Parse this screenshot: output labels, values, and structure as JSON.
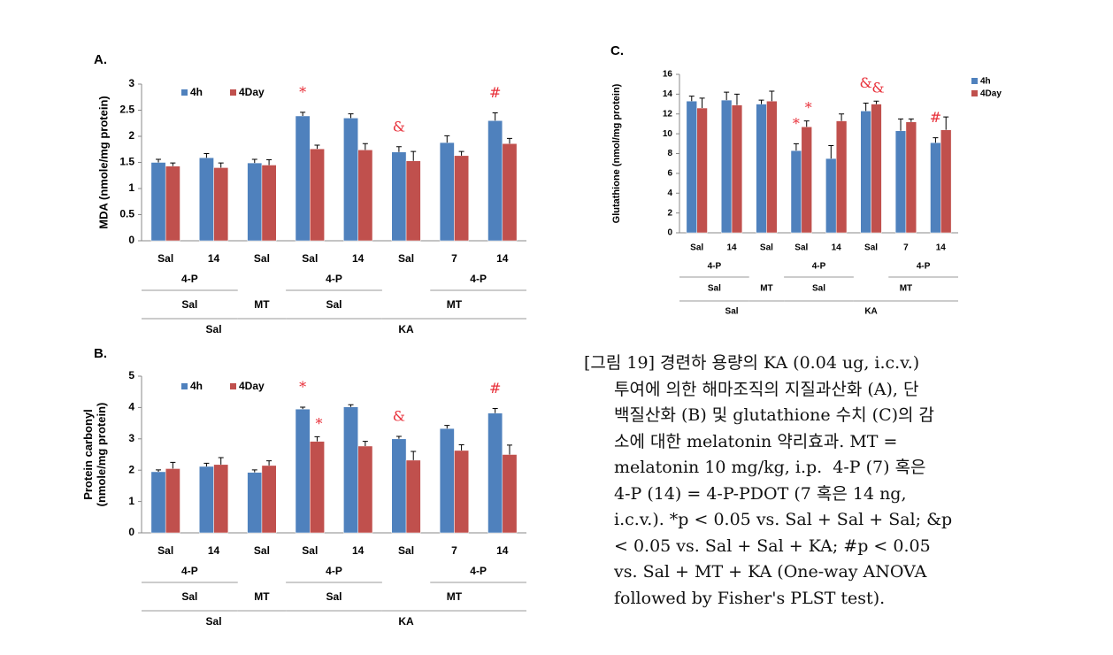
{
  "chart_data": [
    {
      "type": "bar",
      "panel": "A.",
      "ylabel": "MDA (nmole/mg protein)",
      "categories": [
        "Sal",
        "14",
        "Sal",
        "Sal",
        "14",
        "Sal",
        "7",
        "14"
      ],
      "group_labels": [
        [
          "4-P",
          "4-P",
          "4-P"
        ],
        [
          "Sal",
          "MT",
          "Sal",
          "MT"
        ],
        [
          "Sal",
          "KA"
        ]
      ],
      "series": [
        {
          "name": "4h",
          "color": "#4f81bd",
          "values": [
            1.5,
            1.59,
            1.49,
            2.39,
            2.35,
            1.7,
            1.88,
            2.3
          ],
          "errors": [
            0.06,
            0.08,
            0.07,
            0.07,
            0.08,
            0.1,
            0.13,
            0.15
          ],
          "annotations": [
            null,
            null,
            null,
            "*",
            null,
            "&",
            null,
            "#"
          ]
        },
        {
          "name": "4Day",
          "color": "#c0504d",
          "values": [
            1.43,
            1.4,
            1.45,
            1.76,
            1.74,
            1.53,
            1.63,
            1.86
          ],
          "errors": [
            0.06,
            0.09,
            0.1,
            0.07,
            0.12,
            0.18,
            0.08,
            0.1
          ]
        }
      ],
      "ylim": [
        0,
        3
      ],
      "yticks": [
        0,
        0.5,
        1,
        1.5,
        2,
        2.5,
        3
      ],
      "legend": "top-left-inside",
      "annotation_color": "#e8303a"
    },
    {
      "type": "bar",
      "panel": "B.",
      "ylabel": [
        "Protein carbonyl",
        "(nmole/mg protein)"
      ],
      "categories": [
        "Sal",
        "14",
        "Sal",
        "Sal",
        "14",
        "Sal",
        "7",
        "14"
      ],
      "group_labels": [
        [
          "4-P",
          "4-P",
          "4-P"
        ],
        [
          "Sal",
          "MT",
          "Sal",
          "MT"
        ],
        [
          "Sal",
          "KA"
        ]
      ],
      "series": [
        {
          "name": "4h",
          "color": "#4f81bd",
          "values": [
            1.95,
            2.12,
            1.93,
            3.95,
            4.02,
            3.0,
            3.33,
            3.82
          ],
          "errors": [
            0.06,
            0.1,
            0.08,
            0.06,
            0.07,
            0.08,
            0.1,
            0.15
          ],
          "annotations": [
            null,
            null,
            null,
            "*",
            null,
            "&",
            null,
            "#"
          ]
        },
        {
          "name": "4Day",
          "color": "#c0504d",
          "values": [
            2.05,
            2.18,
            2.15,
            2.92,
            2.77,
            2.32,
            2.63,
            2.5
          ],
          "errors": [
            0.2,
            0.22,
            0.15,
            0.15,
            0.15,
            0.28,
            0.18,
            0.3
          ],
          "annotations": [
            null,
            null,
            null,
            "*",
            null,
            null,
            null,
            null
          ]
        }
      ],
      "ylim": [
        0,
        5
      ],
      "yticks": [
        0,
        1,
        2,
        3,
        4,
        5
      ],
      "legend": "top-left-inside",
      "annotation_color": "#e8303a"
    },
    {
      "type": "bar",
      "panel": "C.",
      "ylabel": "Glutathione (nmol/mg protein)",
      "categories": [
        "Sal",
        "14",
        "Sal",
        "Sal",
        "14",
        "Sal",
        "7",
        "14"
      ],
      "group_labels": [
        [
          "4-P",
          "4-P",
          "4-P"
        ],
        [
          "Sal",
          "MT",
          "Sal",
          "MT"
        ],
        [
          "Sal",
          "KA"
        ]
      ],
      "series": [
        {
          "name": "4h",
          "color": "#4f81bd",
          "values": [
            13.3,
            13.4,
            13.0,
            8.3,
            7.5,
            12.3,
            10.3,
            9.1
          ],
          "errors": [
            0.5,
            0.8,
            0.4,
            0.7,
            1.3,
            0.8,
            1.2,
            0.5
          ],
          "annotations": [
            null,
            null,
            null,
            "*",
            null,
            "&",
            null,
            "#"
          ]
        },
        {
          "name": "4Day",
          "color": "#c0504d",
          "values": [
            12.6,
            12.9,
            13.3,
            10.7,
            11.3,
            13.0,
            11.2,
            10.4
          ],
          "errors": [
            1.0,
            1.1,
            1.0,
            0.6,
            0.7,
            0.3,
            0.3,
            1.3
          ],
          "annotations": [
            null,
            null,
            null,
            "*",
            null,
            "&",
            null,
            null
          ]
        }
      ],
      "ylim": [
        0,
        16
      ],
      "yticks": [
        0,
        2,
        4,
        6,
        8,
        10,
        12,
        14,
        16
      ],
      "legend": "right-outside",
      "annotation_color": "#e8303a"
    }
  ],
  "caption": {
    "lines": [
      "[그림 19] 경련하 용량의 KA (0.04 ug, i.c.v.)",
      "투여에 의한 해마조직의 지질과산화 (A), 단",
      "백질산화 (B) 및 glutathione 수치 (C)의 감",
      "소에 대한 melatonin 약리효과. MT =",
      "melatonin 10 mg/kg, i.p.  4-P (7) 혹은",
      "4-P (14) = 4-P-PDOT (7 혹은 14 ng,",
      "i.c.v.). *p < 0.05 vs. Sal + Sal + Sal; &p",
      "< 0.05 vs. Sal + Sal + KA; #p < 0.05",
      "vs. Sal + MT + KA (One-way ANOVA",
      "followed by Fisher's PLST test)."
    ]
  }
}
